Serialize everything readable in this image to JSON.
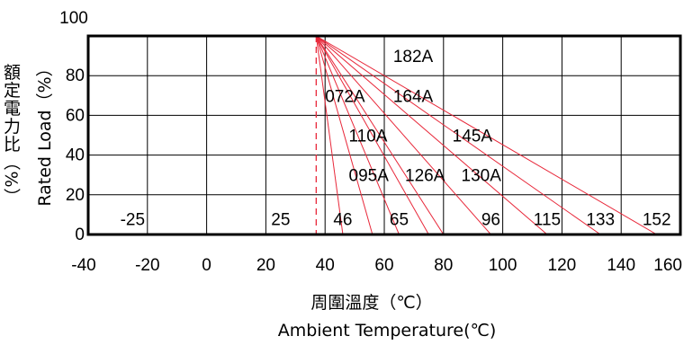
{
  "chart_data": {
    "type": "line",
    "xlabel_zh": "周圍溫度（℃）",
    "xlabel_en": "Ambient Temperature(℃)",
    "ylabel_zh": "額定電力比（%）",
    "ylabel_en": "Rated Load（%）",
    "xlim": [
      -40,
      160
    ],
    "ylim": [
      0,
      100
    ],
    "x_ticks": [
      "-40",
      "-20",
      "0",
      "20",
      "40",
      "60",
      "80",
      "100",
      "120",
      "140",
      "160"
    ],
    "x_tick_values": [
      -40,
      -20,
      0,
      20,
      40,
      60,
      80,
      100,
      120,
      140,
      160
    ],
    "y_ticks": [
      "0",
      "20",
      "40",
      "60",
      "80",
      "100"
    ],
    "y_tick_values": [
      0,
      20,
      40,
      60,
      80,
      100
    ],
    "grid": true,
    "knee": {
      "x": 37,
      "y": 100
    },
    "knee_marker": "dashed-vertical",
    "flat_segment": {
      "x_start": -20,
      "x_end": 37,
      "y": 100
    },
    "series": [
      {
        "end_x": 46,
        "end_y": 0
      },
      {
        "end_x": 56,
        "end_y": 0
      },
      {
        "end_x": 65,
        "end_y": 0
      },
      {
        "end_x": 75,
        "end_y": 0
      },
      {
        "end_x": 80,
        "end_y": 0
      },
      {
        "end_x": 96,
        "end_y": 0
      },
      {
        "end_x": 115,
        "end_y": 0
      },
      {
        "end_x": 133,
        "end_y": 0
      },
      {
        "end_x": 152,
        "end_y": 0
      }
    ],
    "annotations": [
      {
        "text": "182A",
        "x": 63,
        "y": 90
      },
      {
        "text": "072A",
        "x": 40,
        "y": 70
      },
      {
        "text": "164A",
        "x": 63,
        "y": 70
      },
      {
        "text": "110A",
        "x": 48,
        "y": 50
      },
      {
        "text": "145A",
        "x": 83,
        "y": 50
      },
      {
        "text": "095A",
        "x": 48,
        "y": 30
      },
      {
        "text": "126A",
        "x": 67,
        "y": 30
      },
      {
        "text": "130A",
        "x": 86,
        "y": 30
      },
      {
        "text": "-25",
        "x": -25,
        "y": 8
      },
      {
        "text": "25",
        "x": 25,
        "y": 8
      },
      {
        "text": "46",
        "x": 46,
        "y": 8
      },
      {
        "text": "65",
        "x": 65,
        "y": 8
      },
      {
        "text": "96",
        "x": 96,
        "y": 8
      },
      {
        "text": "115",
        "x": 115,
        "y": 8
      },
      {
        "text": "133",
        "x": 133,
        "y": 8
      },
      {
        "text": "152",
        "x": 152,
        "y": 8
      }
    ],
    "colors": {
      "derating_lines": "#e8283a",
      "knee_marker": "#e8283a",
      "frame": "#000000",
      "grid": "#000000"
    }
  }
}
